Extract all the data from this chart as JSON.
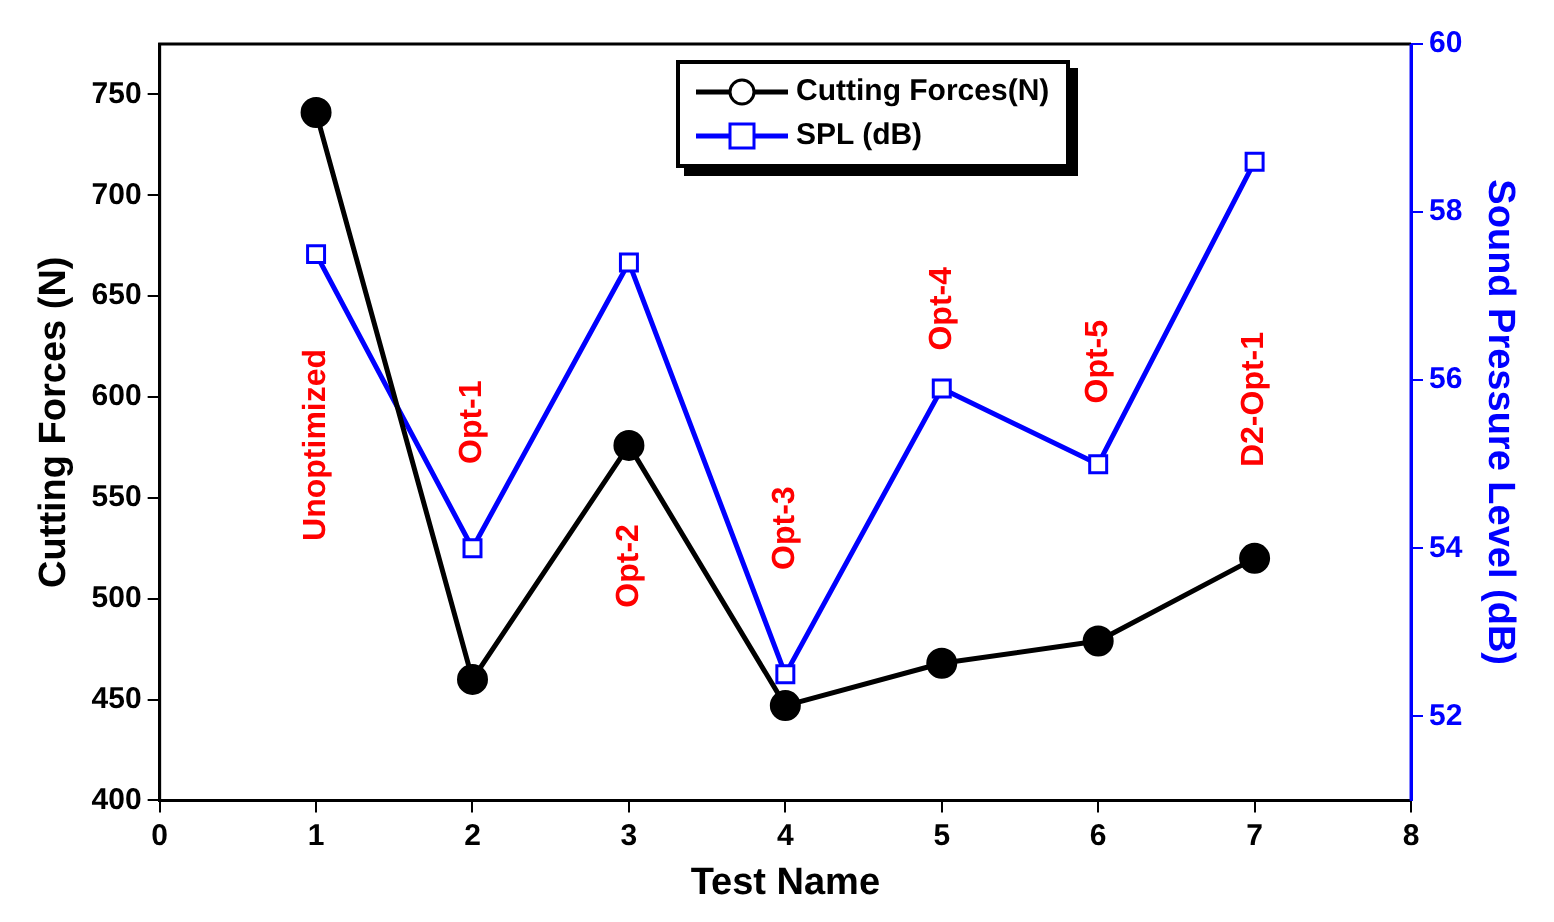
{
  "chart_data": {
    "type": "line",
    "xlabel": "Test Name",
    "ylabel": "Cutting Forces (N)",
    "y2label": "Sound Pressure Level (dB)",
    "x": [
      1,
      2,
      3,
      4,
      5,
      6,
      7
    ],
    "series": [
      {
        "name": "Cutting Forces(N)",
        "color": "#000000",
        "marker": "circle",
        "values": [
          741,
          460,
          576,
          447,
          468,
          479,
          520
        ]
      },
      {
        "name": "SPL (dB)",
        "color": "#0000ff",
        "marker": "square",
        "axis": "y2",
        "values": [
          57.5,
          54.0,
          57.4,
          52.5,
          55.9,
          55.0,
          58.6
        ]
      }
    ],
    "xlim": [
      0,
      8
    ],
    "xticks": [
      0,
      1,
      2,
      3,
      4,
      5,
      6,
      7,
      8
    ],
    "ylim": [
      400,
      775
    ],
    "yticks": [
      400,
      450,
      500,
      550,
      600,
      650,
      700,
      750
    ],
    "y2lim": [
      51,
      60
    ],
    "y2ticks": [
      52,
      54,
      56,
      58,
      60
    ],
    "annotations": [
      "Unoptimized",
      "Opt-1",
      "Opt-2",
      "Opt-3",
      "Opt-4",
      "Opt-5",
      "D2-Opt-1"
    ],
    "grid": false,
    "legend": "top",
    "line_style": "solid"
  }
}
